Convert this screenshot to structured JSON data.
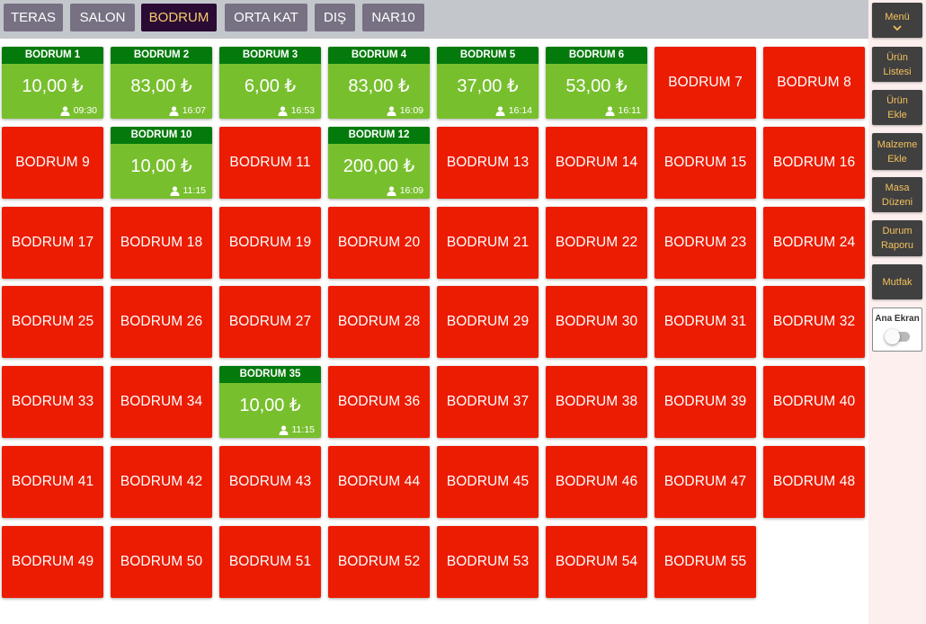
{
  "tabs": [
    {
      "label": "TERAS",
      "active": false
    },
    {
      "label": "SALON",
      "active": false
    },
    {
      "label": "BODRUM",
      "active": true
    },
    {
      "label": "ORTA KAT",
      "active": false
    },
    {
      "label": "DIŞ",
      "active": false
    },
    {
      "label": "NAR10",
      "active": false
    }
  ],
  "sidebar": {
    "menu_label": "Menü",
    "buttons": [
      {
        "label": "Ürün Listesi"
      },
      {
        "label": "Ürün Ekle"
      },
      {
        "label": "Malzeme Ekle"
      },
      {
        "label": "Masa Düzeni"
      },
      {
        "label": "Durum Raporu"
      },
      {
        "label": "Mutfak"
      }
    ],
    "home_label": "Ana Ekran",
    "home_toggle_on": false
  },
  "colors": {
    "empty_table": "#ec1c03",
    "busy_table": "#78bf2e",
    "busy_header": "#057a0c",
    "active_tab": "#2a0b33",
    "accent_text": "#f3c96f"
  },
  "tables": [
    {
      "name": "BODRUM 1",
      "status": "busy",
      "amount": "10,00 ₺",
      "time": "09:30"
    },
    {
      "name": "BODRUM 2",
      "status": "busy",
      "amount": "83,00 ₺",
      "time": "16:07"
    },
    {
      "name": "BODRUM 3",
      "status": "busy",
      "amount": "6,00 ₺",
      "time": "16:53"
    },
    {
      "name": "BODRUM 4",
      "status": "busy",
      "amount": "83,00 ₺",
      "time": "16:09"
    },
    {
      "name": "BODRUM 5",
      "status": "busy",
      "amount": "37,00 ₺",
      "time": "16:14"
    },
    {
      "name": "BODRUM 6",
      "status": "busy",
      "amount": "53,00 ₺",
      "time": "16:11"
    },
    {
      "name": "BODRUM 7",
      "status": "empty"
    },
    {
      "name": "BODRUM 8",
      "status": "empty"
    },
    {
      "name": "BODRUM 9",
      "status": "empty"
    },
    {
      "name": "BODRUM 10",
      "status": "busy",
      "amount": "10,00 ₺",
      "time": "11:15"
    },
    {
      "name": "BODRUM 11",
      "status": "empty"
    },
    {
      "name": "BODRUM 12",
      "status": "busy",
      "amount": "200,00 ₺",
      "time": "16:09"
    },
    {
      "name": "BODRUM 13",
      "status": "empty"
    },
    {
      "name": "BODRUM 14",
      "status": "empty"
    },
    {
      "name": "BODRUM 15",
      "status": "empty"
    },
    {
      "name": "BODRUM 16",
      "status": "empty"
    },
    {
      "name": "BODRUM 17",
      "status": "empty"
    },
    {
      "name": "BODRUM 18",
      "status": "empty"
    },
    {
      "name": "BODRUM 19",
      "status": "empty"
    },
    {
      "name": "BODRUM 20",
      "status": "empty"
    },
    {
      "name": "BODRUM 21",
      "status": "empty"
    },
    {
      "name": "BODRUM 22",
      "status": "empty"
    },
    {
      "name": "BODRUM 23",
      "status": "empty"
    },
    {
      "name": "BODRUM 24",
      "status": "empty"
    },
    {
      "name": "BODRUM 25",
      "status": "empty"
    },
    {
      "name": "BODRUM 26",
      "status": "empty"
    },
    {
      "name": "BODRUM 27",
      "status": "empty"
    },
    {
      "name": "BODRUM 28",
      "status": "empty"
    },
    {
      "name": "BODRUM 29",
      "status": "empty"
    },
    {
      "name": "BODRUM 30",
      "status": "empty"
    },
    {
      "name": "BODRUM 31",
      "status": "empty"
    },
    {
      "name": "BODRUM 32",
      "status": "empty"
    },
    {
      "name": "BODRUM 33",
      "status": "empty"
    },
    {
      "name": "BODRUM 34",
      "status": "empty"
    },
    {
      "name": "BODRUM 35",
      "status": "busy",
      "amount": "10,00 ₺",
      "time": "11:15"
    },
    {
      "name": "BODRUM 36",
      "status": "empty"
    },
    {
      "name": "BODRUM 37",
      "status": "empty"
    },
    {
      "name": "BODRUM 38",
      "status": "empty"
    },
    {
      "name": "BODRUM 39",
      "status": "empty"
    },
    {
      "name": "BODRUM 40",
      "status": "empty"
    },
    {
      "name": "BODRUM 41",
      "status": "empty"
    },
    {
      "name": "BODRUM 42",
      "status": "empty"
    },
    {
      "name": "BODRUM 43",
      "status": "empty"
    },
    {
      "name": "BODRUM 44",
      "status": "empty"
    },
    {
      "name": "BODRUM 45",
      "status": "empty"
    },
    {
      "name": "BODRUM 46",
      "status": "empty"
    },
    {
      "name": "BODRUM 47",
      "status": "empty"
    },
    {
      "name": "BODRUM 48",
      "status": "empty"
    },
    {
      "name": "BODRUM 49",
      "status": "empty"
    },
    {
      "name": "BODRUM 50",
      "status": "empty"
    },
    {
      "name": "BODRUM 51",
      "status": "empty"
    },
    {
      "name": "BODRUM 52",
      "status": "empty"
    },
    {
      "name": "BODRUM 53",
      "status": "empty"
    },
    {
      "name": "BODRUM 54",
      "status": "empty"
    },
    {
      "name": "BODRUM 55",
      "status": "empty"
    }
  ]
}
